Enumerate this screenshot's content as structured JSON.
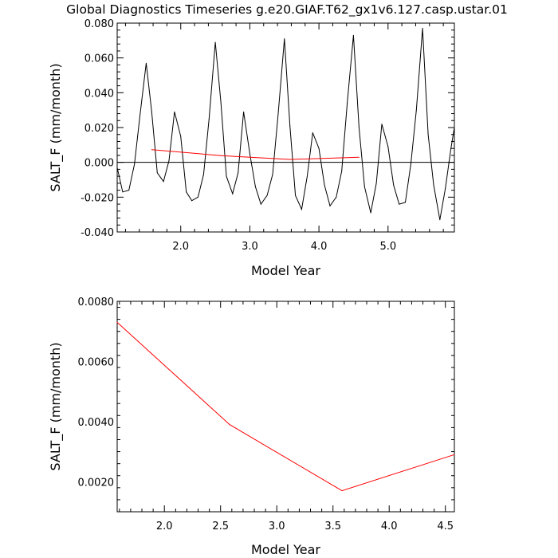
{
  "title": "Global Diagnostics Timeseries g.e20.GIAF.T62_gx1v6.127.casp.ustar.01",
  "chart_data": [
    {
      "type": "line",
      "xlabel": "Model Year",
      "ylabel": "SALT_F (mm/month)",
      "xlim": [
        1.08,
        5.96
      ],
      "ylim": [
        -0.04,
        0.08
      ],
      "xticks": [
        2.0,
        3.0,
        4.0,
        5.0
      ],
      "xtick_labels": [
        "2.0",
        "3.0",
        "4.0",
        "5.0"
      ],
      "yticks": [
        -0.04,
        -0.02,
        0.0,
        0.02,
        0.04,
        0.06,
        0.08
      ],
      "ytick_labels": [
        "-0.040",
        "-0.020",
        "0.000",
        "0.020",
        "0.040",
        "0.060",
        "0.080"
      ],
      "reference_line": 0.0,
      "series": [
        {
          "color": "#000000",
          "x": [
            1.08,
            1.16,
            1.25,
            1.33,
            1.41,
            1.5,
            1.58,
            1.66,
            1.75,
            1.83,
            1.91,
            2.0,
            2.08,
            2.16,
            2.25,
            2.33,
            2.41,
            2.5,
            2.58,
            2.66,
            2.75,
            2.83,
            2.91,
            3.0,
            3.08,
            3.16,
            3.25,
            3.33,
            3.41,
            3.5,
            3.58,
            3.66,
            3.75,
            3.83,
            3.91,
            4.0,
            4.08,
            4.16,
            4.25,
            4.33,
            4.41,
            4.5,
            4.58,
            4.66,
            4.75,
            4.83,
            4.91,
            5.0,
            5.08,
            5.16,
            5.25,
            5.33,
            5.41,
            5.5,
            5.58,
            5.66,
            5.75,
            5.83,
            5.91,
            5.96
          ],
          "y": [
            -0.003,
            -0.017,
            -0.016,
            -0.001,
            0.027,
            0.057,
            0.029,
            -0.006,
            -0.011,
            0.001,
            0.029,
            0.015,
            -0.017,
            -0.022,
            -0.02,
            -0.007,
            0.025,
            0.069,
            0.035,
            -0.008,
            -0.018,
            -0.006,
            0.029,
            0.005,
            -0.014,
            -0.024,
            -0.019,
            -0.007,
            0.028,
            0.071,
            0.021,
            -0.019,
            -0.027,
            -0.008,
            0.017,
            0.008,
            -0.013,
            -0.025,
            -0.02,
            -0.005,
            0.034,
            0.073,
            0.02,
            -0.014,
            -0.029,
            -0.012,
            0.022,
            0.009,
            -0.013,
            -0.024,
            -0.023,
            -0.001,
            0.03,
            0.077,
            0.016,
            -0.013,
            -0.033,
            -0.015,
            0.008,
            0.02
          ]
        },
        {
          "color": "#ff0000",
          "x": [
            1.58,
            2.58,
            3.58,
            4.58
          ],
          "y": [
            0.0073,
            0.0039,
            0.0017,
            0.0029
          ]
        }
      ]
    },
    {
      "type": "line",
      "xlabel": "Model Year",
      "ylabel": "SALT_F (mm/month)",
      "xlim": [
        1.58,
        4.58
      ],
      "ylim": [
        0.001,
        0.008
      ],
      "xticks": [
        2.0,
        2.5,
        3.0,
        3.5,
        4.0,
        4.5
      ],
      "xtick_labels": [
        "2.0",
        "2.5",
        "3.0",
        "3.5",
        "4.0",
        "4.5"
      ],
      "yticks": [
        0.002,
        0.004,
        0.006,
        0.008
      ],
      "ytick_labels": [
        "0.0020",
        "0.0040",
        "0.0060",
        "0.0080"
      ],
      "series": [
        {
          "color": "#ff0000",
          "x": [
            1.58,
            2.58,
            3.58,
            4.58
          ],
          "y": [
            0.0073,
            0.0039,
            0.0017,
            0.0029
          ]
        }
      ]
    }
  ]
}
